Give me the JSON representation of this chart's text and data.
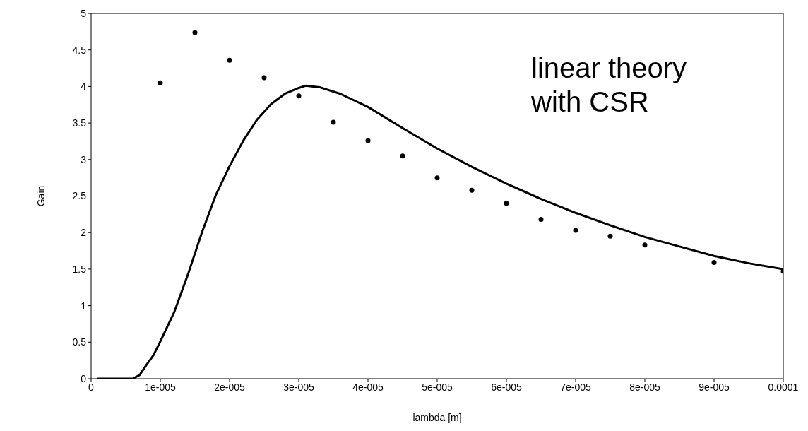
{
  "chart_data": {
    "type": "line",
    "xlabel": "lambda [m]",
    "ylabel": "Gain",
    "xlim": [
      0,
      0.0001
    ],
    "xticks": [
      0,
      {
        "value": 1e-05,
        "label": "1e-005"
      },
      {
        "value": 2e-05,
        "label": "2e-005"
      },
      {
        "value": 3e-05,
        "label": "3e-005"
      },
      {
        "value": 4e-05,
        "label": "4e-005"
      },
      {
        "value": 5e-05,
        "label": "5e-005"
      },
      {
        "value": 6e-05,
        "label": "6e-005"
      },
      {
        "value": 7e-05,
        "label": "7e-005"
      },
      {
        "value": 8e-05,
        "label": "8e-005"
      },
      {
        "value": 9e-05,
        "label": "9e-005"
      },
      {
        "value": 0.0001,
        "label": "0.0001"
      }
    ],
    "ylim": [
      0,
      5
    ],
    "yticks": [
      0,
      0.5,
      1,
      1.5,
      2,
      2.5,
      3,
      3.5,
      4,
      4.5,
      5
    ],
    "grid": false,
    "annotations": [
      "linear theory\nwith CSR"
    ],
    "series": [
      {
        "type": "line",
        "color": "#000000",
        "marker": "none",
        "x": [
          1e-06,
          6e-06,
          7e-06,
          8e-06,
          9e-06,
          1e-05,
          1.2e-05,
          1.4e-05,
          1.6e-05,
          1.8e-05,
          2e-05,
          2.2e-05,
          2.4e-05,
          2.6e-05,
          2.8e-05,
          3e-05,
          3.1e-05,
          3.3e-05,
          3.6e-05,
          4e-05,
          4.5e-05,
          5e-05,
          5.5e-05,
          6e-05,
          6.5e-05,
          7e-05,
          7.5e-05,
          8e-05,
          8.5e-05,
          9e-05,
          9.5e-05,
          0.0001
        ],
        "values": [
          0,
          0,
          0.05,
          0.19,
          0.32,
          0.51,
          0.91,
          1.43,
          2.0,
          2.51,
          2.91,
          3.26,
          3.55,
          3.76,
          3.9,
          3.98,
          4.01,
          3.99,
          3.9,
          3.72,
          3.43,
          3.15,
          2.9,
          2.67,
          2.46,
          2.27,
          2.1,
          1.94,
          1.81,
          1.68,
          1.58,
          1.5
        ]
      },
      {
        "type": "scatter",
        "color": "#000000",
        "marker": "circle",
        "x": [
          1e-05,
          1.5e-05,
          2e-05,
          2.5e-05,
          3e-05,
          3.5e-05,
          4e-05,
          4.5e-05,
          5e-05,
          5.5e-05,
          6e-05,
          6.5e-05,
          7e-05,
          7.5e-05,
          8e-05,
          9e-05,
          0.0001
        ],
        "values": [
          4.05,
          4.74,
          4.36,
          4.12,
          3.87,
          3.51,
          3.26,
          3.05,
          2.75,
          2.58,
          2.4,
          2.18,
          2.03,
          1.95,
          1.83,
          1.59,
          1.47
        ]
      }
    ]
  }
}
